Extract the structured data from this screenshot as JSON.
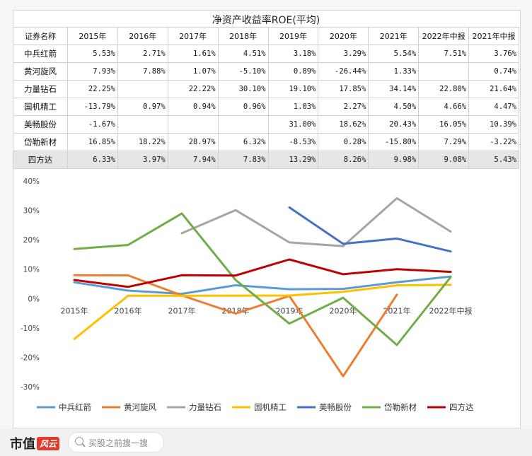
{
  "title": "净资产收益率ROE(平均)",
  "table": {
    "header": [
      "证券名称",
      "2015年",
      "2016年",
      "2017年",
      "2018年",
      "2019年",
      "2020年",
      "2021年",
      "2022年中报",
      "2021年中报"
    ],
    "rows": [
      {
        "name": "中兵红箭",
        "cells": [
          "5.53%",
          "2.71%",
          "1.61%",
          "4.51%",
          "3.18%",
          "3.29%",
          "5.54%",
          "7.51%",
          "3.76%"
        ]
      },
      {
        "name": "黄河旋风",
        "cells": [
          "7.93%",
          "7.88%",
          "1.07%",
          "-5.10%",
          "0.89%",
          "-26.44%",
          "1.33%",
          "",
          "0.74%"
        ]
      },
      {
        "name": "力量钻石",
        "cells": [
          "22.25%",
          "",
          "22.22%",
          "30.10%",
          "19.10%",
          "17.85%",
          "34.14%",
          "22.80%",
          "21.64%"
        ]
      },
      {
        "name": "国机精工",
        "cells": [
          "-13.79%",
          "0.97%",
          "0.94%",
          "0.96%",
          "1.03%",
          "2.27%",
          "4.50%",
          "4.66%",
          "4.47%"
        ]
      },
      {
        "name": "美畅股份",
        "cells": [
          "-1.67%",
          "",
          "",
          "",
          "31.00%",
          "18.62%",
          "20.43%",
          "16.05%",
          "10.39%"
        ]
      },
      {
        "name": "岱勒新材",
        "cells": [
          "16.85%",
          "18.22%",
          "28.97%",
          "6.32%",
          "-8.53%",
          "0.28%",
          "-15.80%",
          "7.29%",
          "-3.22%"
        ]
      },
      {
        "name": "四方达",
        "cells": [
          "6.33%",
          "3.97%",
          "7.94%",
          "7.83%",
          "13.29%",
          "8.26%",
          "9.98%",
          "9.08%",
          "5.43%"
        ]
      }
    ]
  },
  "chart_data": {
    "type": "line",
    "categories": [
      "2015年",
      "2016年",
      "2017年",
      "2018年",
      "2019年",
      "2020年",
      "2021年",
      "2022年中报"
    ],
    "y_ticks": [
      "40%",
      "30%",
      "20%",
      "10%",
      "0%",
      "-10%",
      "-20%",
      "-30%"
    ],
    "ylim": [
      -30,
      40
    ],
    "grid": false,
    "legend_position": "bottom",
    "series": [
      {
        "name": "中兵红箭",
        "color": "#5b9bd5",
        "values": [
          5.53,
          2.71,
          1.61,
          4.51,
          3.18,
          3.29,
          5.54,
          7.51
        ]
      },
      {
        "name": "黄河旋风",
        "color": "#ed7d31",
        "values": [
          7.93,
          7.88,
          1.07,
          -5.1,
          0.89,
          -26.44,
          1.33,
          null
        ]
      },
      {
        "name": "力量钻石",
        "color": "#a5a5a5",
        "values": [
          null,
          null,
          22.22,
          30.1,
          19.1,
          17.85,
          34.14,
          22.8
        ]
      },
      {
        "name": "国机精工",
        "color": "#ffc000",
        "values": [
          -13.79,
          0.97,
          0.94,
          0.96,
          1.03,
          2.27,
          4.5,
          4.66
        ]
      },
      {
        "name": "美畅股份",
        "color": "#4472c4",
        "values": [
          null,
          null,
          null,
          null,
          31.0,
          18.62,
          20.43,
          16.05
        ]
      },
      {
        "name": "岱勒新材",
        "color": "#70ad47",
        "values": [
          16.85,
          18.22,
          28.97,
          6.32,
          -8.53,
          0.28,
          -15.8,
          7.29
        ]
      },
      {
        "name": "四方达",
        "color": "#c00000",
        "values": [
          6.33,
          3.97,
          7.94,
          7.83,
          13.29,
          8.26,
          9.98,
          9.08
        ]
      }
    ]
  },
  "footer": {
    "brand": "市值",
    "brand_seal": "风云",
    "search_placeholder": "买股之前搜一搜"
  }
}
